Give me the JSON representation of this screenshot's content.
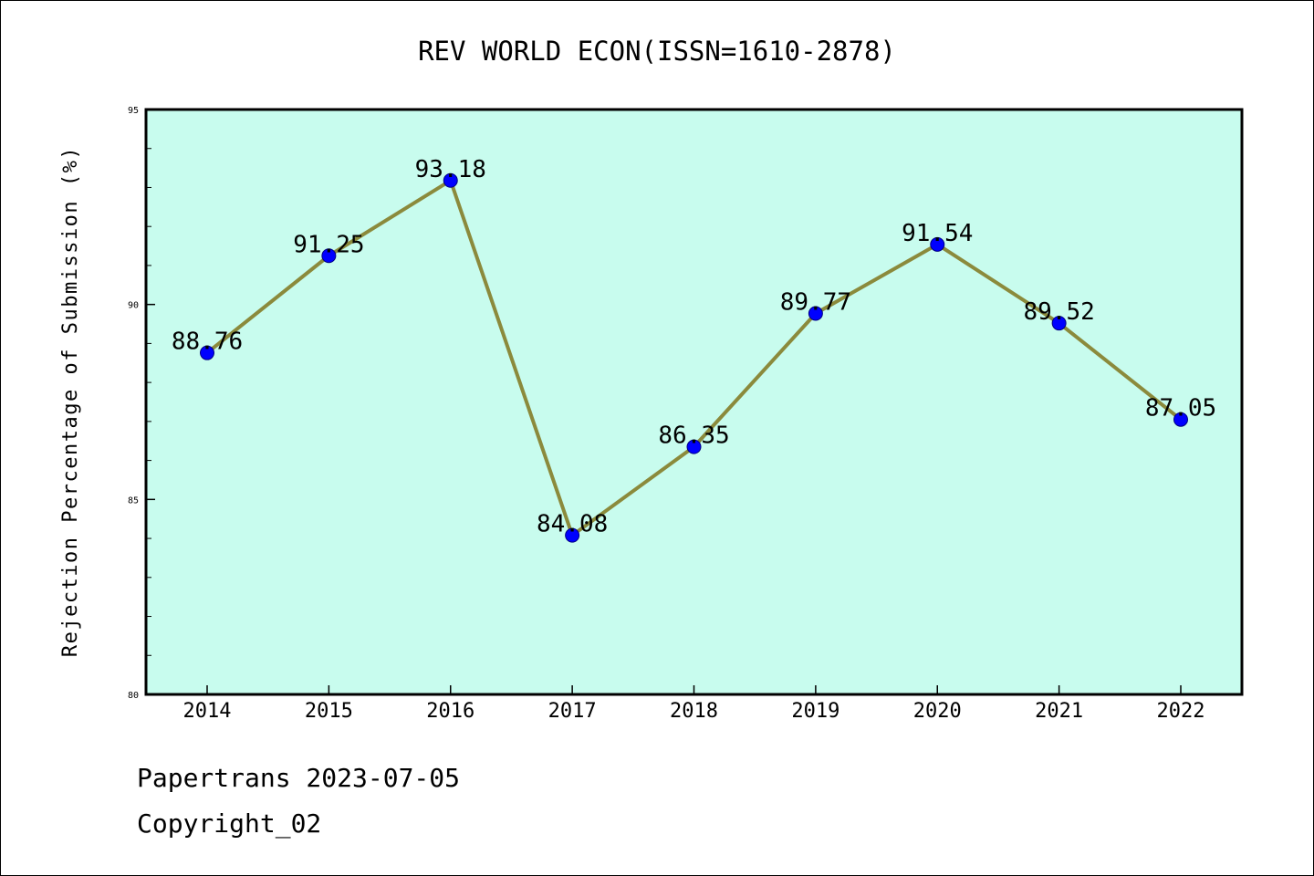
{
  "chart_data": {
    "type": "line",
    "title": "REV WORLD ECON(ISSN=1610-2878)",
    "xlabel": "",
    "ylabel": "Rejection Percentage of Submission (%)",
    "categories": [
      "2014",
      "2015",
      "2016",
      "2017",
      "2018",
      "2019",
      "2020",
      "2021",
      "2022"
    ],
    "series": [
      {
        "values": [
          88.76,
          91.25,
          93.18,
          84.08,
          86.35,
          89.77,
          91.54,
          89.52,
          87.05
        ],
        "data_labels": [
          "88.76",
          "91.25",
          "93.18",
          "84.08",
          "86.35",
          "89.77",
          "91.54",
          "89.52",
          "87.05"
        ]
      }
    ],
    "ylim": [
      80,
      95
    ],
    "yticks": [
      80,
      85,
      90,
      95
    ],
    "ytick_labels": [
      "80",
      "85",
      "90",
      "95"
    ],
    "grid": false,
    "colors": {
      "plot_background": "#c8fcee",
      "line": "#8b8a3c",
      "marker": "#0000ff"
    }
  },
  "footer": {
    "line1": "Papertrans 2023-07-05",
    "line2": "Copyright_02"
  }
}
